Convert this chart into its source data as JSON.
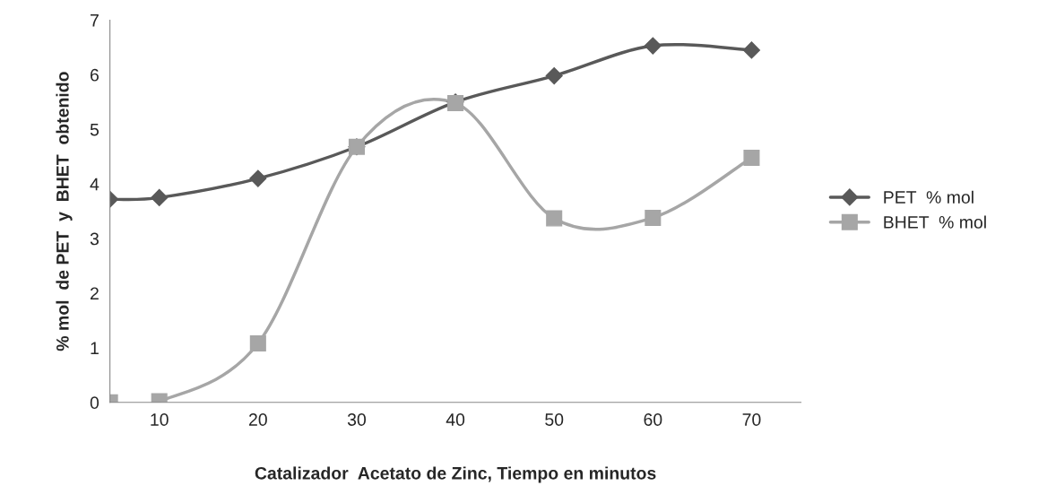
{
  "chart_data": {
    "type": "line",
    "xlabel": "Catalizador  Acetato de Zinc, Tiempo en minutos",
    "ylabel": "% mol  de PET  y  BHET  obtenido",
    "x": [
      5,
      10,
      20,
      30,
      40,
      50,
      60,
      70
    ],
    "series": [
      {
        "name": "PET  % mol",
        "color": "#595959",
        "marker": "diamond",
        "values": [
          3.72,
          3.75,
          4.1,
          4.68,
          5.5,
          5.98,
          6.53,
          6.45
        ]
      },
      {
        "name": "BHET  % mol",
        "color": "#a6a6a6",
        "marker": "square",
        "values": [
          0,
          0.02,
          1.08,
          4.68,
          5.48,
          3.37,
          3.38,
          4.48
        ]
      }
    ],
    "xlim": [
      5,
      75
    ],
    "xticks": [
      10,
      20,
      30,
      40,
      50,
      60,
      70
    ],
    "ylim": [
      0,
      7
    ],
    "yticks": [
      0,
      1,
      2,
      3,
      4,
      5,
      6,
      7
    ],
    "grid": false,
    "legend": "right"
  }
}
